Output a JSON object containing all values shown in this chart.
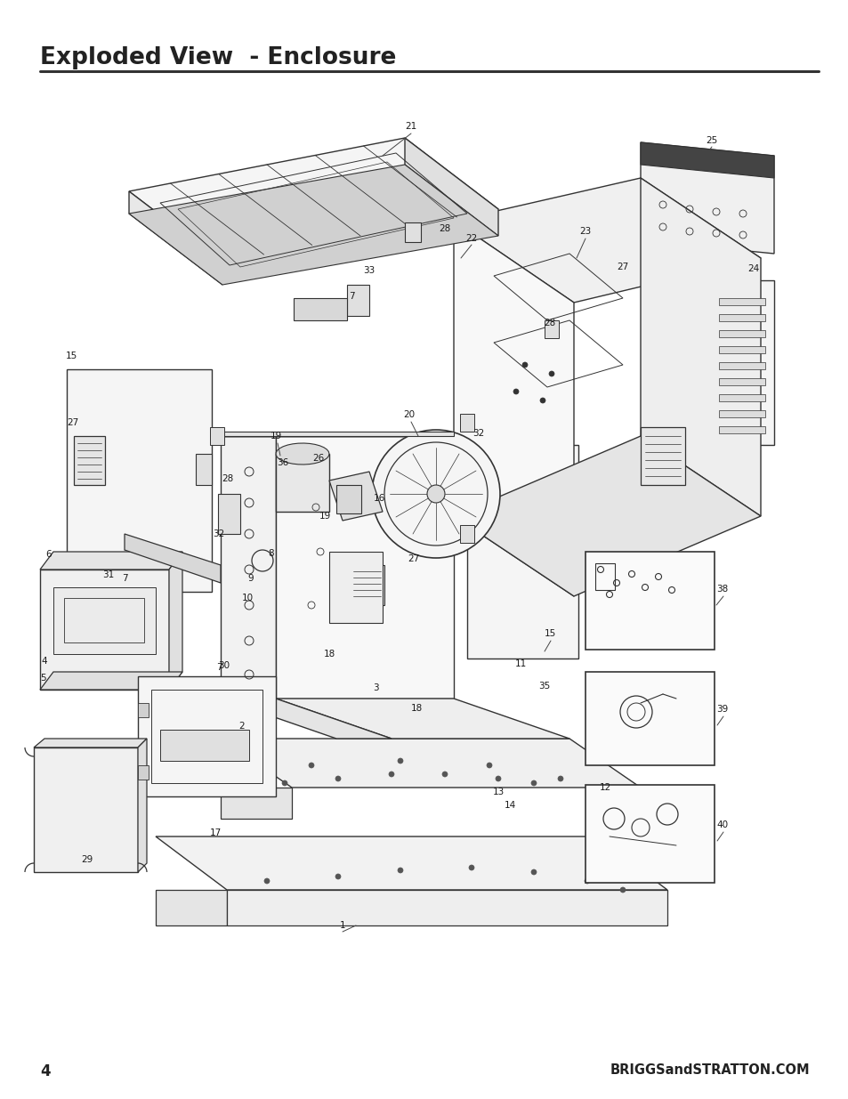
{
  "title": "Exploded View  - Enclosure",
  "page_number": "4",
  "website": "BRIGGSandSTRATTON.COM",
  "bg_color": "#ffffff",
  "title_color": "#222222",
  "line_color": "#222222",
  "title_fontsize": 19,
  "footer_fontsize": 10.5,
  "page_num_fontsize": 12,
  "dark": "#333333",
  "mid": "#888888",
  "light": "#cccccc"
}
